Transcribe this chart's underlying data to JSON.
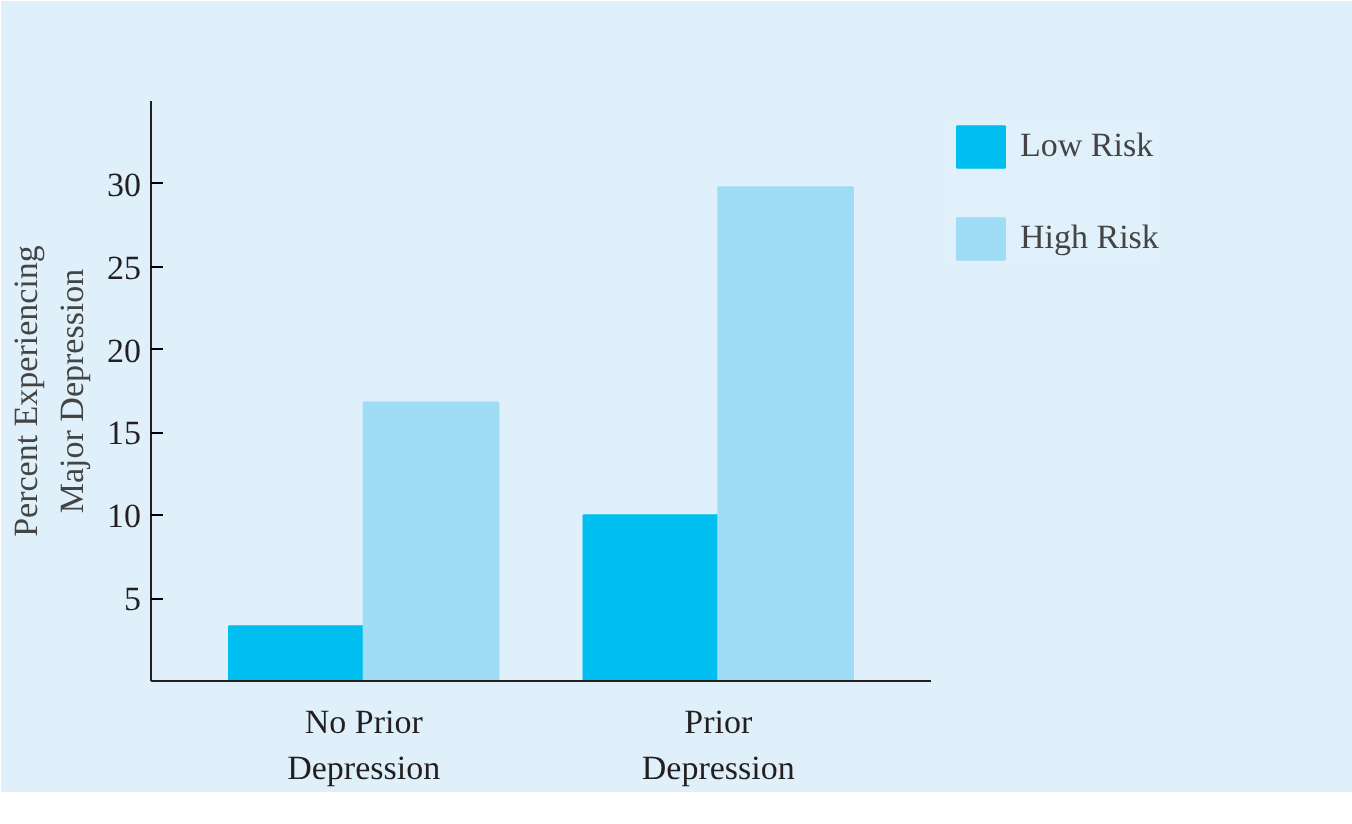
{
  "chart_data": {
    "type": "bar",
    "ylabel": "Percent Experiencing\nMajor Depression",
    "categories": [
      "No Prior\nDepression",
      "Prior\nDepression"
    ],
    "series": [
      {
        "name": "Low Risk",
        "color": "#00bff0",
        "values": [
          3.3,
          10
        ]
      },
      {
        "name": "High Risk",
        "color": "#9fdcf5",
        "values": [
          16.8,
          29.8
        ]
      }
    ],
    "ylim": [
      0,
      35
    ],
    "yticks": [
      5,
      10,
      15,
      20,
      25,
      30
    ],
    "grid": false,
    "legend": "top right"
  }
}
